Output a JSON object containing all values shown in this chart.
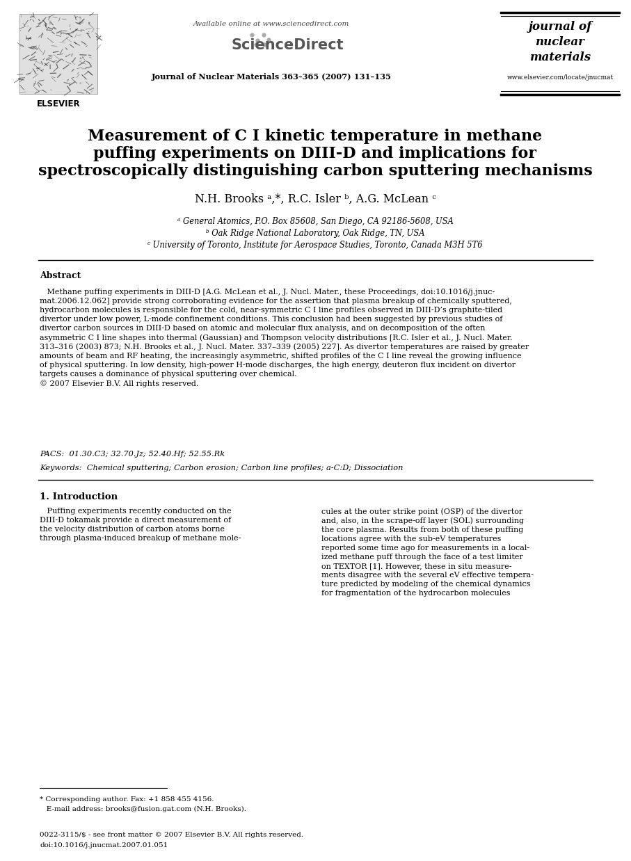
{
  "bg": "#ffffff",
  "header_available": "Available online at www.sciencedirect.com",
  "header_journal_info": "Journal of Nuclear Materials 363–365 (2007) 131–135",
  "header_jnm1": "journal of",
  "header_jnm2": "nuclear",
  "header_jnm3": "materials",
  "header_url": "www.elsevier.com/locate/jnucmat",
  "elsevier": "ELSEVIER",
  "title_line1": "Measurement of C I kinetic temperature in methane",
  "title_line2": "puffing experiments on DIII-D and implications for",
  "title_line3": "spectroscopically distinguishing carbon sputtering mechanisms",
  "authors_line": "N.H. Brooks ᵃ,*, R.C. Isler ᵇ, A.G. McLean ᶜ",
  "affil_a": "ᵃ General Atomics, P.O. Box 85608, San Diego, CA 92186-5608, USA",
  "affil_b": "ᵇ Oak Ridge National Laboratory, Oak Ridge, TN, USA",
  "affil_c": "ᶜ University of Toronto, Institute for Aerospace Studies, Toronto, Canada M3H 5T6",
  "abstract_label": "Abstract",
  "abstract_body": "   Methane puffing experiments in DIII-D [A.G. McLean et al., J. Nucl. Mater., these Proceedings, doi:10.1016/j.jnuc-\nmat.2006.12.062] provide strong corroborating evidence for the assertion that plasma breakup of chemically sputtered,\nhydrocarbon molecules is responsible for the cold, near-symmetric C I line profiles observed in DIII-D’s graphite-tiled\ndivertor under low power, L-mode confinement conditions. This conclusion had been suggested by previous studies of\ndivertor carbon sources in DIII-D based on atomic and molecular flux analysis, and on decomposition of the often\nasymmetric C I line shapes into thermal (Gaussian) and Thompson velocity distributions [R.C. Isler et al., J. Nucl. Mater.\n313–316 (2003) 873; N.H. Brooks et al., J. Nucl. Mater. 337–339 (2005) 227]. As divertor temperatures are raised by greater\namounts of beam and RF heating, the increasingly asymmetric, shifted profiles of the C I line reveal the growing influence\nof physical sputtering. In low density, high-power H-mode discharges, the high energy, deuteron flux incident on divertor\ntargets causes a dominance of physical sputtering over chemical.\n© 2007 Elsevier B.V. All rights reserved.",
  "pacs_line": "PACS:  01.30.C3; 32.70.Jz; 52.40.Hf; 52.55.Rk",
  "keywords_line": "Keywords:  Chemical sputtering; Carbon erosion; Carbon line profiles; a-C:D; Dissociation",
  "sec1_title": "1. Introduction",
  "sec1_col1": "   Puffing experiments recently conducted on the\nDIII-D tokamak provide a direct measurement of\nthe velocity distribution of carbon atoms borne\nthrough plasma-induced breakup of methane mole-",
  "sec1_col2": "cules at the outer strike point (OSP) of the divertor\nand, also, in the scrape-off layer (SOL) surrounding\nthe core plasma. Results from both of these puffing\nlocations agree with the sub-eV temperatures\nreported some time ago for measurements in a local-\nized methane puff through the face of a test limiter\non TEXTOR [1]. However, these in situ measure-\nments disagree with the several eV effective tempera-\nture predicted by modeling of the chemical dynamics\nfor fragmentation of the hydrocarbon molecules",
  "footnote1": "* Corresponding author. Fax: +1 858 455 4156.",
  "footnote2": "   E-mail address: brooks@fusion.gat.com (N.H. Brooks).",
  "footer1": "0022-3115/$ - see front matter © 2007 Elsevier B.V. All rights reserved.",
  "footer2": "doi:10.1016/j.jnucmat.2007.01.051"
}
